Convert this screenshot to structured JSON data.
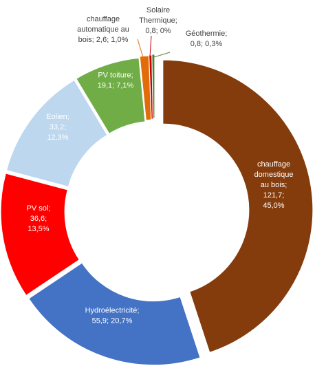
{
  "chart_data": {
    "type": "pie",
    "variant": "doughnut",
    "slices": [
      {
        "name": "chauffage domestique au bois",
        "value": 121.7,
        "percent": "45,0%",
        "color": "#843c0c",
        "label_lines": [
          "chauffage",
          "domestique",
          "au bois;",
          "121,7;",
          "45,0%"
        ],
        "label_color": "#ffffff"
      },
      {
        "name": "Hydroélectricité",
        "value": 55.9,
        "percent": "20,7%",
        "color": "#4472c4",
        "label_lines": [
          "Hydroélectricité;",
          "55,9; 20,7%"
        ],
        "label_color": "#ffffff"
      },
      {
        "name": "PV sol",
        "value": 36.6,
        "percent": "13,5%",
        "color": "#ff0000",
        "label_lines": [
          "PV sol;",
          "36,6;",
          "13,5%"
        ],
        "label_color": "#ffffff"
      },
      {
        "name": "Eolien",
        "value": 33.2,
        "percent": "12,3%",
        "color": "#bdd7ee",
        "label_lines": [
          "Eolien;",
          "33,2;",
          "12,3%"
        ],
        "label_color": "#ffffff"
      },
      {
        "name": "PV toiture",
        "value": 19.1,
        "percent": "7,1%",
        "color": "#70ad47",
        "label_lines": [
          "PV toiture;",
          "19,1; 7,1%"
        ],
        "label_color": "#ffffff"
      },
      {
        "name": "chauffage automatique au bois",
        "value": 2.6,
        "percent": "1,0%",
        "color": "#e36c0a",
        "label_lines": [
          "chauffage",
          "automatique au",
          "bois; 2,6; 1,0%"
        ],
        "label_color": "#404040"
      },
      {
        "name": "Solaire Thermique",
        "value": 0.8,
        "percent": "0%",
        "color": "#c00000",
        "label_lines": [
          "Solaire",
          "Thermique;",
          "0,8; 0%"
        ],
        "label_color": "#404040"
      },
      {
        "name": "Géothermie",
        "value": 0.8,
        "percent": "0,3%",
        "color": "#548235",
        "label_lines": [
          "Géothermie;",
          "0,8; 0,3%"
        ],
        "label_color": "#404040"
      }
    ],
    "legend": "none",
    "grid": false
  }
}
